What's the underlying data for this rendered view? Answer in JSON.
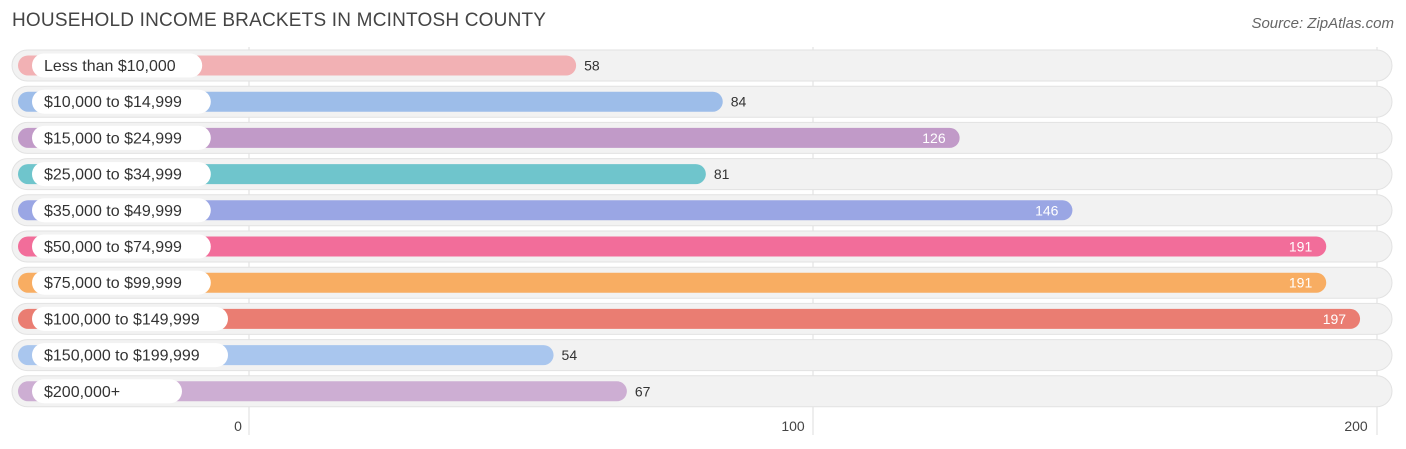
{
  "title": "HOUSEHOLD INCOME BRACKETS IN MCINTOSH COUNTY",
  "source": "Source: ZipAtlas.com",
  "chart_data": {
    "type": "bar",
    "orientation": "horizontal",
    "title": "HOUSEHOLD INCOME BRACKETS IN MCINTOSH COUNTY",
    "xlabel": "",
    "ylabel": "",
    "xlim": [
      0,
      200
    ],
    "xticks": [
      0,
      100,
      200
    ],
    "grid": true,
    "categories": [
      "Less than $10,000",
      "$10,000 to $14,999",
      "$15,000 to $24,999",
      "$25,000 to $34,999",
      "$35,000 to $49,999",
      "$50,000 to $74,999",
      "$75,000 to $99,999",
      "$100,000 to $149,999",
      "$150,000 to $199,999",
      "$200,000+"
    ],
    "values": [
      58,
      84,
      126,
      81,
      146,
      191,
      191,
      197,
      54,
      67
    ],
    "colors": [
      "#f2b1b4",
      "#9dbde9",
      "#c19ac8",
      "#6fc5cc",
      "#9aa6e4",
      "#f26d9a",
      "#f8ad62",
      "#ea7d72",
      "#a9c6ee",
      "#cdaed3"
    ]
  }
}
